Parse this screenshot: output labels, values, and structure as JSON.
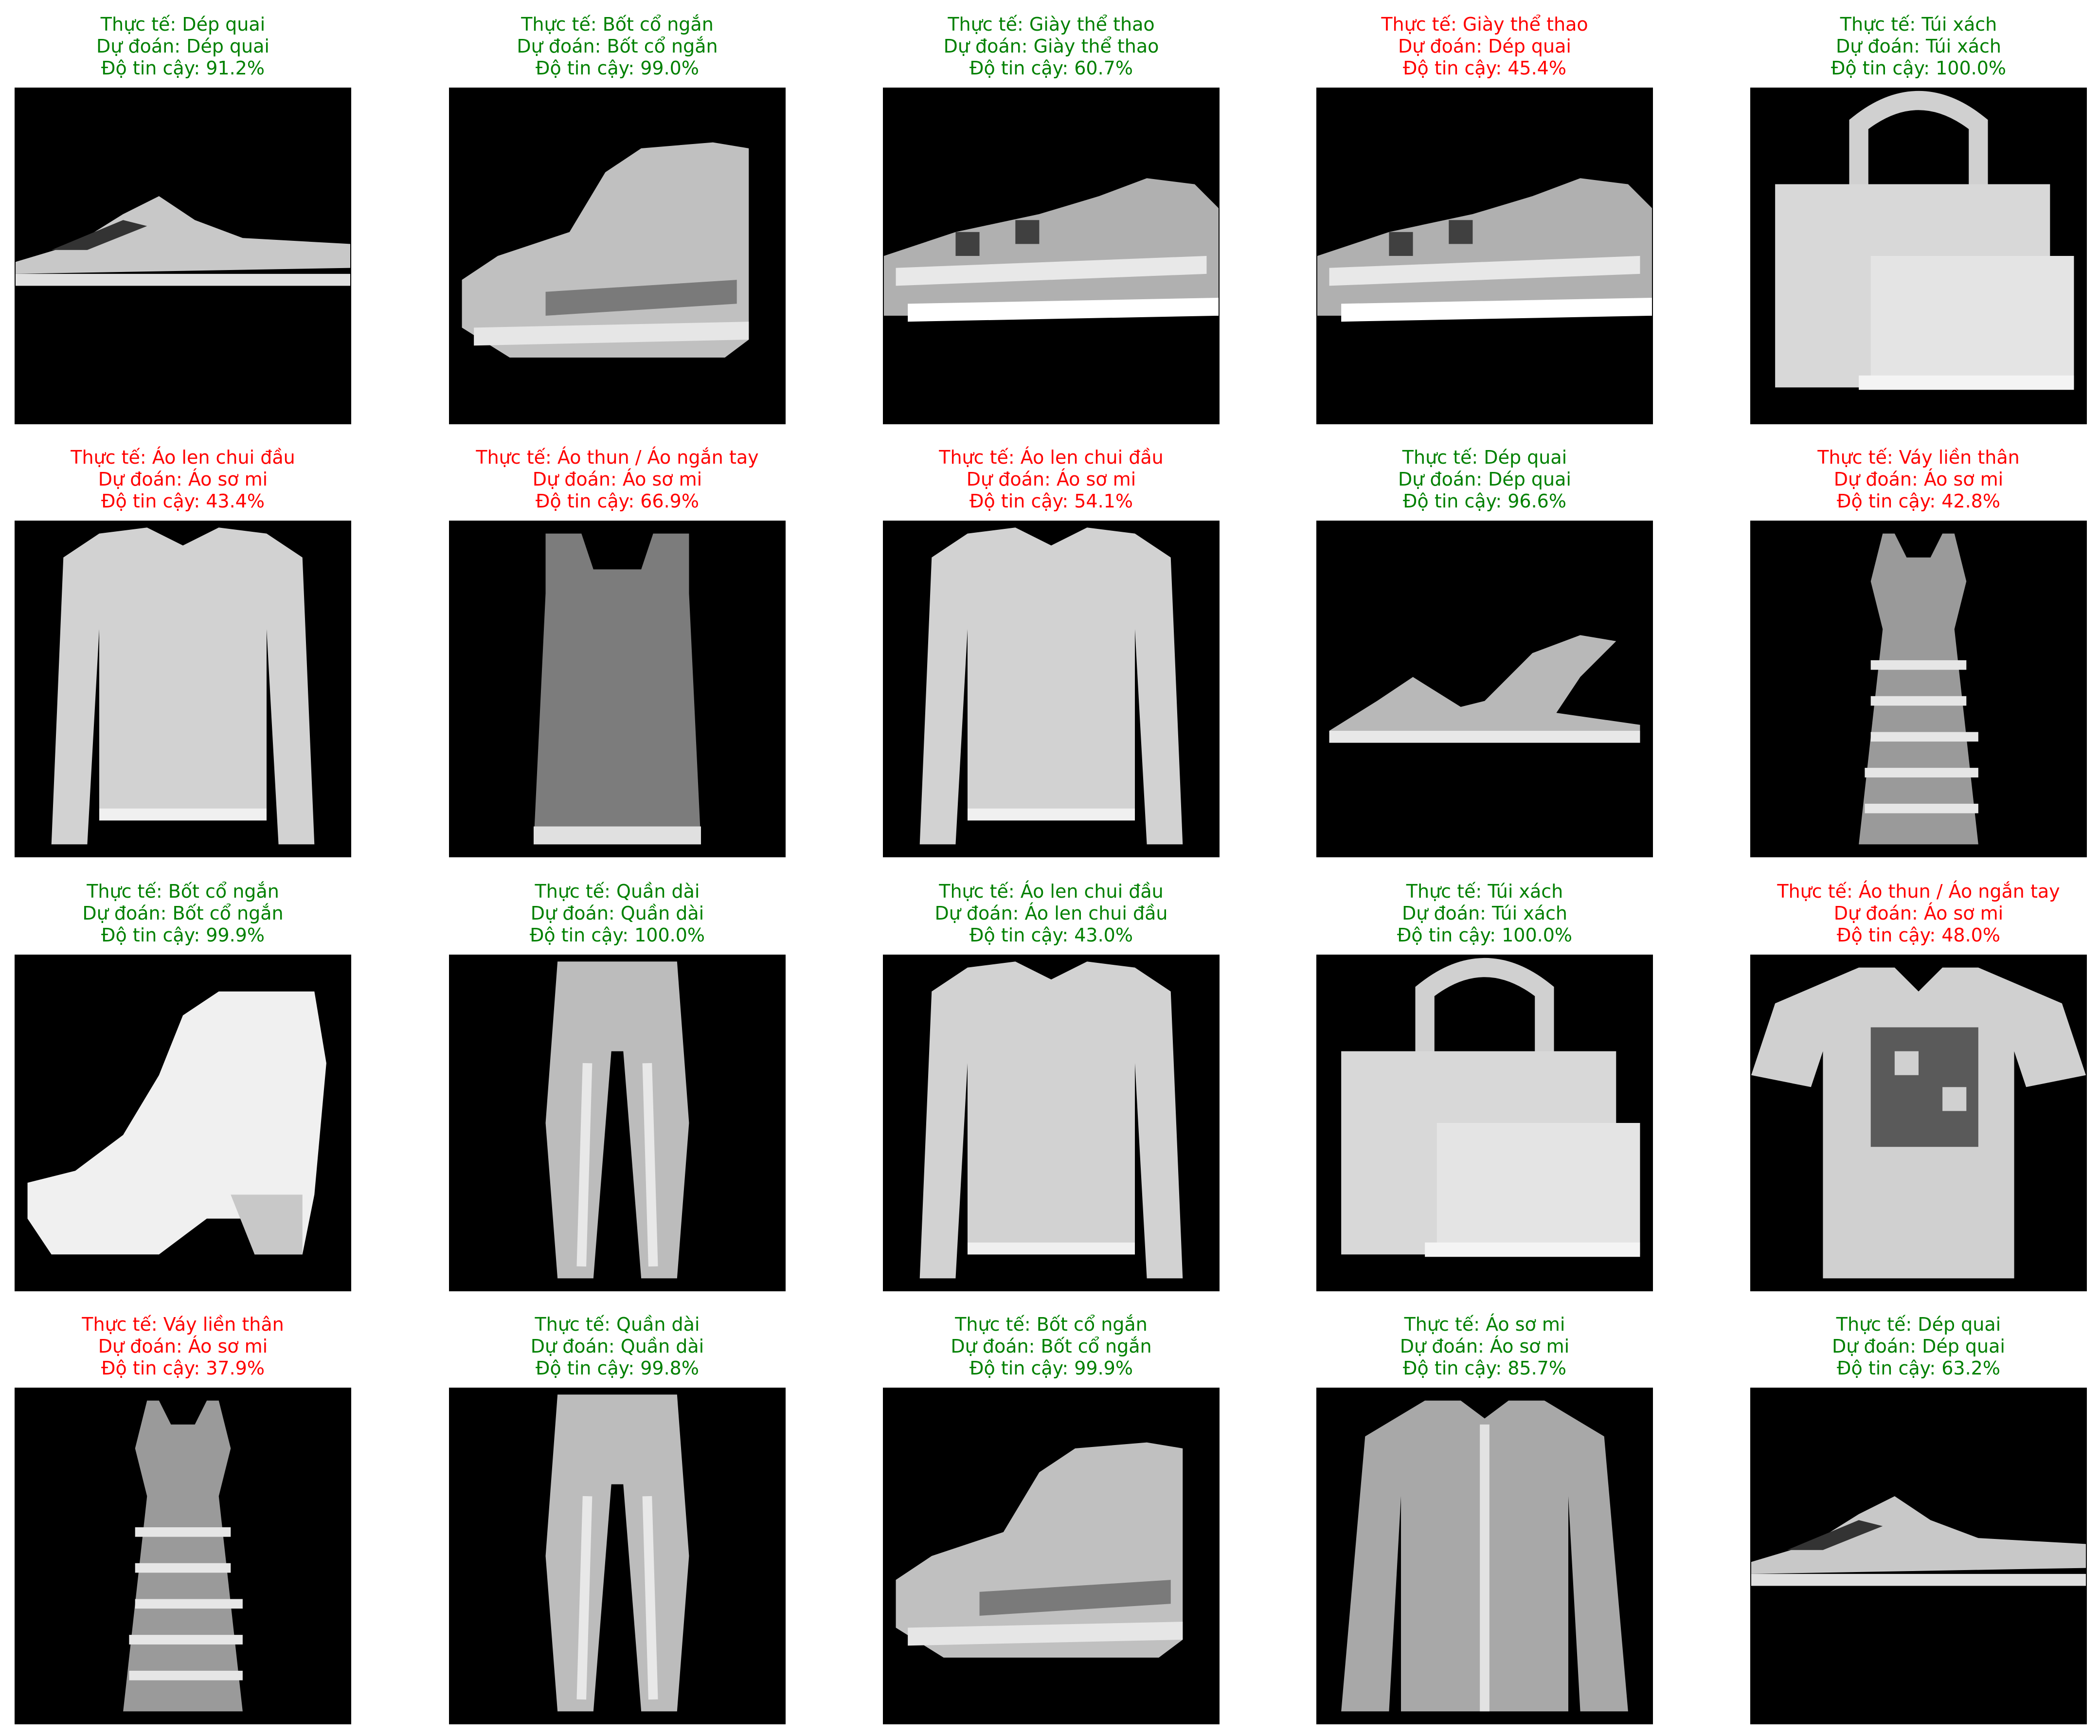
{
  "colors": {
    "correct": "#008000",
    "incorrect": "#ff0000",
    "image_background": "#000000",
    "garment_light": "#d8d8d8",
    "garment_mid": "#8a8a8a"
  },
  "predictions": [
    {
      "actual": "Thực tế: Dép quai",
      "predicted": "Dự đoán: Dép quai",
      "confidence": "Độ tin cậy: 91.2%",
      "correct": true,
      "item_icon": "sandal-icon",
      "confidence_value": 91.2
    },
    {
      "actual": "Thực tế: Bốt cổ ngắn",
      "predicted": "Dự đoán: Bốt cổ ngắn",
      "confidence": "Độ tin cậy: 99.0%",
      "correct": true,
      "item_icon": "ankle-boot-icon",
      "confidence_value": 99.0
    },
    {
      "actual": "Thực tế: Giày thể thao",
      "predicted": "Dự đoán: Giày thể thao",
      "confidence": "Độ tin cậy: 60.7%",
      "correct": true,
      "item_icon": "sneaker-icon",
      "confidence_value": 60.7
    },
    {
      "actual": "Thực tế: Giày thể thao",
      "predicted": "Dự đoán: Dép quai",
      "confidence": "Độ tin cậy: 45.4%",
      "correct": false,
      "item_icon": "sneaker-icon",
      "confidence_value": 45.4
    },
    {
      "actual": "Thực tế: Túi xách",
      "predicted": "Dự đoán: Túi xách",
      "confidence": "Độ tin cậy: 100.0%",
      "correct": true,
      "item_icon": "handbag-icon",
      "confidence_value": 100.0
    },
    {
      "actual": "Thực tế: Áo len chui đầu",
      "predicted": "Dự đoán: Áo sơ mi",
      "confidence": "Độ tin cậy: 43.4%",
      "correct": false,
      "item_icon": "pullover-icon",
      "confidence_value": 43.4
    },
    {
      "actual": "Thực tế: Áo thun / Áo ngắn tay",
      "predicted": "Dự đoán: Áo sơ mi",
      "confidence": "Độ tin cậy: 66.9%",
      "correct": false,
      "item_icon": "tank-top-icon",
      "confidence_value": 66.9
    },
    {
      "actual": "Thực tế: Áo len chui đầu",
      "predicted": "Dự đoán: Áo sơ mi",
      "confidence": "Độ tin cậy: 54.1%",
      "correct": false,
      "item_icon": "pullover-icon",
      "confidence_value": 54.1
    },
    {
      "actual": "Thực tế: Dép quai",
      "predicted": "Dự đoán: Dép quai",
      "confidence": "Độ tin cậy: 96.6%",
      "correct": true,
      "item_icon": "strappy-sandal-icon",
      "confidence_value": 96.6
    },
    {
      "actual": "Thực tế: Váy liền thân",
      "predicted": "Dự đoán: Áo sơ mi",
      "confidence": "Độ tin cậy: 42.8%",
      "correct": false,
      "item_icon": "dress-icon",
      "confidence_value": 42.8
    },
    {
      "actual": "Thực tế: Bốt cổ ngắn",
      "predicted": "Dự đoán: Bốt cổ ngắn",
      "confidence": "Độ tin cậy: 99.9%",
      "correct": true,
      "item_icon": "heeled-boot-icon",
      "confidence_value": 99.9
    },
    {
      "actual": "Thực tế: Quần dài",
      "predicted": "Dự đoán: Quần dài",
      "confidence": "Độ tin cậy: 100.0%",
      "correct": true,
      "item_icon": "trousers-icon",
      "confidence_value": 100.0
    },
    {
      "actual": "Thực tế: Áo len chui đầu",
      "predicted": "Dự đoán: Áo len chui đầu",
      "confidence": "Độ tin cậy: 43.0%",
      "correct": true,
      "item_icon": "pullover-icon",
      "confidence_value": 43.0
    },
    {
      "actual": "Thực tế: Túi xách",
      "predicted": "Dự đoán: Túi xách",
      "confidence": "Độ tin cậy: 100.0%",
      "correct": true,
      "item_icon": "handbag-icon",
      "confidence_value": 100.0
    },
    {
      "actual": "Thực tế: Áo thun / Áo ngắn tay",
      "predicted": "Dự đoán: Áo sơ mi",
      "confidence": "Độ tin cậy: 48.0%",
      "correct": false,
      "item_icon": "t-shirt-icon",
      "confidence_value": 48.0
    },
    {
      "actual": "Thực tế: Váy liền thân",
      "predicted": "Dự đoán: Áo sơ mi",
      "confidence": "Độ tin cậy: 37.9%",
      "correct": false,
      "item_icon": "dress-icon",
      "confidence_value": 37.9
    },
    {
      "actual": "Thực tế: Quần dài",
      "predicted": "Dự đoán: Quần dài",
      "confidence": "Độ tin cậy: 99.8%",
      "correct": true,
      "item_icon": "trousers-icon",
      "confidence_value": 99.8
    },
    {
      "actual": "Thực tế: Bốt cổ ngắn",
      "predicted": "Dự đoán: Bốt cổ ngắn",
      "confidence": "Độ tin cậy: 99.9%",
      "correct": true,
      "item_icon": "ankle-boot-icon",
      "confidence_value": 99.9
    },
    {
      "actual": "Thực tế: Áo sơ mi",
      "predicted": "Dự đoán: Áo sơ mi",
      "confidence": "Độ tin cậy: 85.7%",
      "correct": true,
      "item_icon": "shirt-icon",
      "confidence_value": 85.7
    },
    {
      "actual": "Thực tế: Dép quai",
      "predicted": "Dự đoán: Dép quai",
      "confidence": "Độ tin cậy: 63.2%",
      "correct": true,
      "item_icon": "sandal-icon",
      "confidence_value": 63.2
    }
  ]
}
